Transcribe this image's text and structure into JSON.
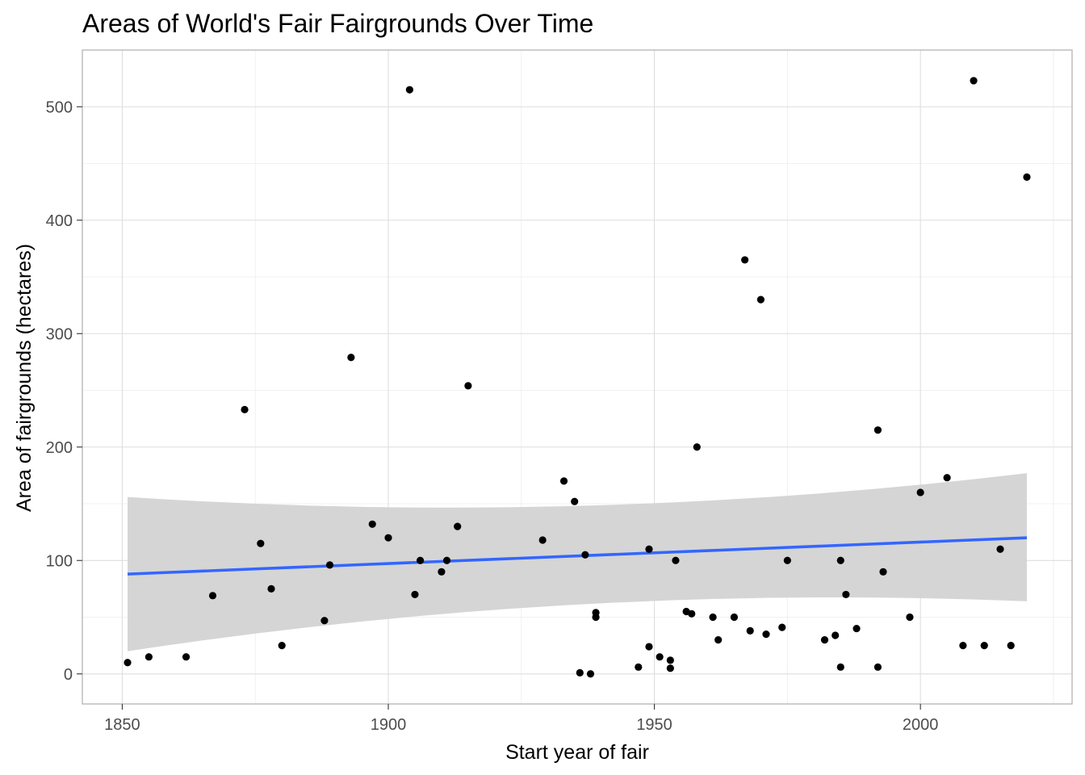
{
  "chart_data": {
    "type": "scatter",
    "title": "Areas of World's Fair Fairgrounds Over Time",
    "xlabel": "Start year of fair",
    "ylabel": "Area of fairgrounds (hectares)",
    "xlim": [
      1842.5,
      2028.5
    ],
    "ylim": [
      -26.5,
      550
    ],
    "x_ticks": [
      1850,
      1900,
      1950,
      2000
    ],
    "y_ticks": [
      0,
      100,
      200,
      300,
      400,
      500
    ],
    "x_tick_labels": [
      "1850",
      "1900",
      "1950",
      "2000"
    ],
    "y_tick_labels": [
      "0",
      "100",
      "200",
      "300",
      "400",
      "500"
    ],
    "grid": true,
    "legend": "none",
    "colors": {
      "points": "#000000",
      "trend_line": "#3366ff",
      "confidence_band": "#d3d3d3"
    },
    "series": [
      {
        "type": "scatter",
        "points": [
          [
            1851,
            10
          ],
          [
            1855,
            15
          ],
          [
            1862,
            15
          ],
          [
            1867,
            69
          ],
          [
            1873,
            233
          ],
          [
            1876,
            115
          ],
          [
            1878,
            75
          ],
          [
            1880,
            25
          ],
          [
            1888,
            47
          ],
          [
            1889,
            96
          ],
          [
            1893,
            279
          ],
          [
            1897,
            132
          ],
          [
            1900,
            120
          ],
          [
            1904,
            515
          ],
          [
            1905,
            70
          ],
          [
            1906,
            100
          ],
          [
            1910,
            90
          ],
          [
            1911,
            100
          ],
          [
            1913,
            130
          ],
          [
            1915,
            254
          ],
          [
            1929,
            118
          ],
          [
            1933,
            170
          ],
          [
            1935,
            152
          ],
          [
            1936,
            1
          ],
          [
            1937,
            105
          ],
          [
            1938,
            0
          ],
          [
            1939,
            54
          ],
          [
            1939,
            50
          ],
          [
            1947,
            6
          ],
          [
            1949,
            24
          ],
          [
            1949,
            110
          ],
          [
            1951,
            15
          ],
          [
            1953,
            12
          ],
          [
            1953,
            5
          ],
          [
            1954,
            100
          ],
          [
            1956,
            55
          ],
          [
            1957,
            53
          ],
          [
            1958,
            200
          ],
          [
            1961,
            50
          ],
          [
            1962,
            30
          ],
          [
            1965,
            50
          ],
          [
            1967,
            365
          ],
          [
            1968,
            38
          ],
          [
            1970,
            330
          ],
          [
            1971,
            35
          ],
          [
            1974,
            41
          ],
          [
            1975,
            100
          ],
          [
            1982,
            30
          ],
          [
            1984,
            34
          ],
          [
            1985,
            6
          ],
          [
            1985,
            100
          ],
          [
            1986,
            70
          ],
          [
            1988,
            40
          ],
          [
            1992,
            215
          ],
          [
            1992,
            6
          ],
          [
            1993,
            90
          ],
          [
            1998,
            50
          ],
          [
            2000,
            160
          ],
          [
            2005,
            173
          ],
          [
            2008,
            25
          ],
          [
            2010,
            523
          ],
          [
            2012,
            25
          ],
          [
            2015,
            110
          ],
          [
            2017,
            25
          ],
          [
            2020,
            438
          ]
        ]
      },
      {
        "type": "line",
        "method": "linear fit",
        "x": [
          1851,
          2020
        ],
        "y": [
          88,
          120
        ],
        "band_lower": [
          20,
          64
        ],
        "band_upper": [
          156,
          177
        ]
      }
    ]
  }
}
